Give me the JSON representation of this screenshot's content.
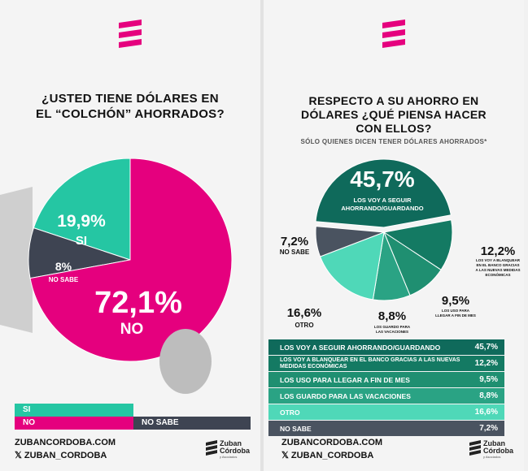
{
  "colors": {
    "magenta": "#e5007e",
    "teal_light": "#25c6a3",
    "dark_gray": "#3e4452",
    "deep_green": "#0f6a5b",
    "green2": "#147a63",
    "green3": "#1f8f71",
    "green4": "#2aa384",
    "mint": "#4fd8b8",
    "slate": "#4a5360"
  },
  "left": {
    "title_line1": "¿USTED TIENE DÓLARES EN",
    "title_line2": "EL “COLCHÓN” AHORRADOS?",
    "labels": {
      "si_pct": "19,9%",
      "si": "SI",
      "ns_pct": "8%",
      "ns": "NO SABE",
      "no_pct": "72,1%",
      "no": "NO"
    },
    "legend": {
      "si": "SI",
      "no": "NO",
      "ns": "NO SABE"
    }
  },
  "right": {
    "title_line1": "RESPECTO A SU AHORRO EN",
    "title_line2": "DÓLARES ¿QUÉ PIENSA HACER",
    "title_line3": "CON ELLOS?",
    "subtitle": "SÓLO QUIENES DICEN TENER DÓLARES AHORRADOS*",
    "labels": {
      "s1_pct": "45,7%",
      "s1_a": "LOS VOY A SEGUIR",
      "s1_b": "AHORRANDO/GUARDANDO",
      "s2_pct": "12,2%",
      "s2_a": "LOS VOY A BLANQUEAR",
      "s2_b": "EN EL BANCO GRACIAS",
      "s2_c": "A LAS NUEVAS MEDIDAS",
      "s2_d": "ECONÓMICAS",
      "s3_pct": "9,5%",
      "s3_a": "LOS USO PARA",
      "s3_b": "LLEGAR A FIN DE MES",
      "s4_pct": "8,8%",
      "s4_a": "LOS GUARDO PARA",
      "s4_b": "LAS VACACIONES",
      "s5_pct": "16,6%",
      "s5_a": "OTRO",
      "s6_pct": "7,2%",
      "s6_a": "NO SABE"
    },
    "table": [
      {
        "label": "LOS VOY A SEGUIR AHORRANDO/GUARDANDO",
        "value": "45,7%"
      },
      {
        "label": "LOS VOY A BLANQUEAR EN EL BANCO GRACIAS A LAS NUEVAS MEDIDAS ECONÓMICAS",
        "value": "12,2%"
      },
      {
        "label": "LOS USO PARA LLEGAR A FIN DE MES",
        "value": "9,5%"
      },
      {
        "label": "LOS GUARDO PARA LAS VACACIONES",
        "value": "8,8%"
      },
      {
        "label": "OTRO",
        "value": "16,6%"
      },
      {
        "label": "NO SABE",
        "value": "7,2%"
      }
    ]
  },
  "footer": {
    "site": "ZUBANCORDOBA.COM",
    "handle": "𝕏 ZUBAN_CORDOBA",
    "brand1": "Zuban",
    "brand2": "Córdoba",
    "brand_sub": "y Asociados"
  },
  "chart_data": [
    {
      "type": "pie",
      "title": "¿USTED TIENE DÓLARES EN EL “COLCHÓN” AHORRADOS?",
      "categories": [
        "SI",
        "NO SABE",
        "NO"
      ],
      "values": [
        19.9,
        8.0,
        72.1
      ],
      "colors": [
        "#25c6a3",
        "#3e4452",
        "#e5007e"
      ],
      "legend_placement": "bottom"
    },
    {
      "type": "pie",
      "title": "RESPECTO A SU AHORRO EN DÓLARES ¿QUÉ PIENSA HACER CON ELLOS?",
      "subtitle": "SÓLO QUIENES DICEN TENER DÓLARES AHORRADOS*",
      "categories": [
        "LOS VOY A SEGUIR AHORRANDO/GUARDANDO",
        "LOS VOY A BLANQUEAR EN EL BANCO GRACIAS A LAS NUEVAS MEDIDAS ECONÓMICAS",
        "LOS USO PARA LLEGAR A FIN DE MES",
        "LOS GUARDO PARA LAS VACACIONES",
        "OTRO",
        "NO SABE"
      ],
      "values": [
        45.7,
        12.2,
        9.5,
        8.8,
        16.6,
        7.2
      ],
      "colors": [
        "#0f6a5b",
        "#147a63",
        "#1f8f71",
        "#2aa384",
        "#4fd8b8",
        "#4a5360"
      ],
      "legend_placement": "bottom"
    }
  ]
}
